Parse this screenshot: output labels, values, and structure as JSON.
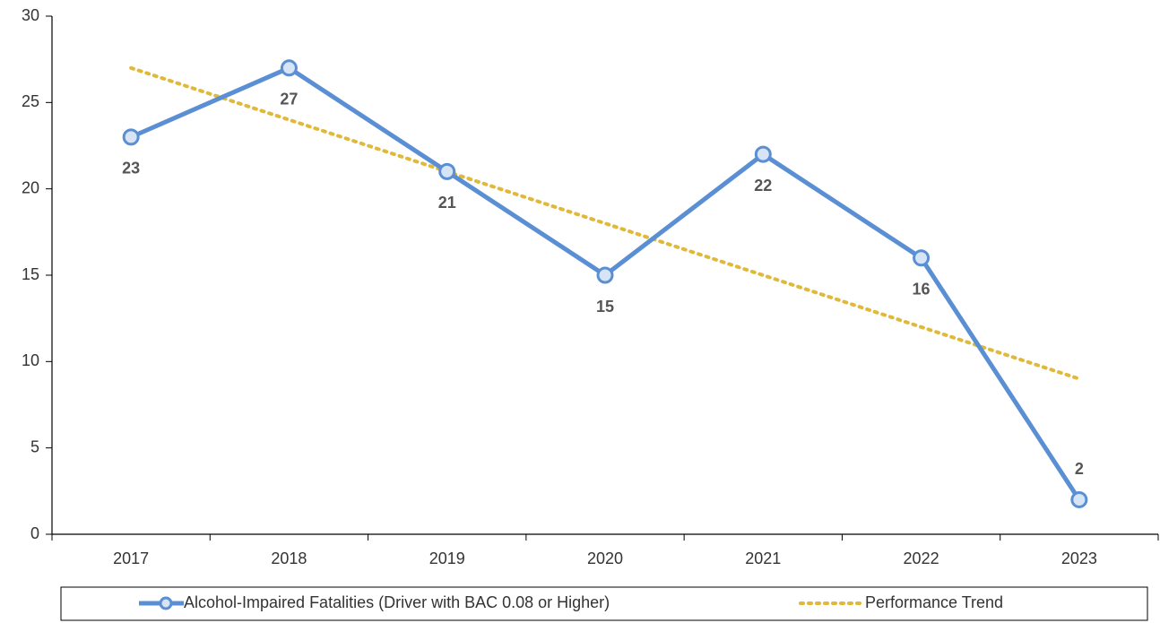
{
  "chart_data": {
    "type": "line",
    "categories": [
      "2017",
      "2018",
      "2019",
      "2020",
      "2021",
      "2022",
      "2023"
    ],
    "series": [
      {
        "name": "Alcohol-Impaired Fatalities (Driver with BAC 0.08 or Higher)",
        "color": "#5b8fd4",
        "marker_fill": "#d6e4f5",
        "markers": true,
        "data_labels": true,
        "line_style": "solid",
        "values": [
          23,
          27,
          21,
          15,
          22,
          16,
          2
        ]
      },
      {
        "name": "Performance Trend",
        "color": "#e0b93a",
        "markers": false,
        "data_labels": false,
        "line_style": "dotted",
        "values": [
          27,
          24,
          21,
          18,
          15,
          12,
          9
        ]
      }
    ],
    "ylim": [
      0,
      30
    ],
    "yticks": [
      0,
      5,
      10,
      15,
      20,
      25,
      30
    ],
    "grid": false,
    "legend": "bottom"
  }
}
